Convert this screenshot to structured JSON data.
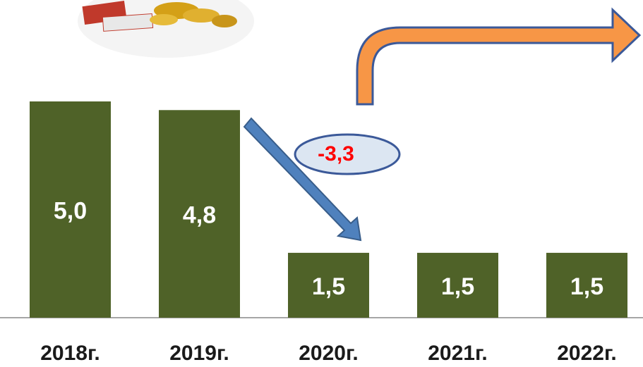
{
  "chart_data": {
    "type": "bar",
    "categories": [
      "2018г.",
      "2019г.",
      "2020г.",
      "2021г.",
      "2022г."
    ],
    "values": [
      5.0,
      4.8,
      1.5,
      1.5,
      1.5
    ],
    "value_labels": [
      "5,0",
      "4,8",
      "1,5",
      "1,5",
      "1,5"
    ],
    "color": "#4f6228",
    "annotation": "-3,3"
  }
}
